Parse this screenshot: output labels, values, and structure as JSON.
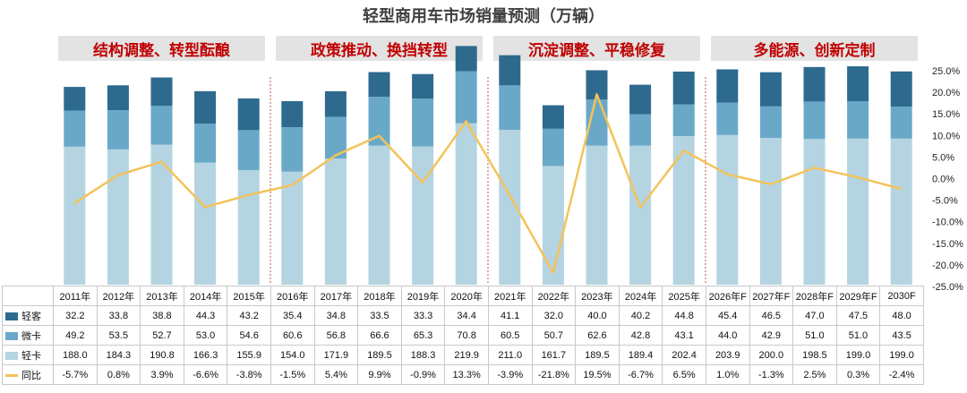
{
  "chart_data": {
    "type": "bar",
    "title": "轻型商用车市场销量预测（万辆）",
    "categories": [
      "2011年",
      "2012年",
      "2013年",
      "2014年",
      "2015年",
      "2016年",
      "2017年",
      "2018年",
      "2019年",
      "2020年",
      "2021年",
      "2022年",
      "2023年",
      "2024年",
      "2025年",
      "2026年F",
      "2027年F",
      "2028年F",
      "2029年F",
      "2030F"
    ],
    "stacked": true,
    "series": [
      {
        "name": "轻卡",
        "color": "#b4d4e2",
        "values": [
          188.0,
          184.3,
          190.8,
          166.3,
          155.9,
          154.0,
          171.9,
          189.5,
          188.3,
          219.9,
          211.0,
          161.7,
          189.5,
          189.4,
          202.4,
          203.9,
          200.0,
          198.5,
          199.0,
          199.0
        ]
      },
      {
        "name": "微卡",
        "color": "#6aa8c8",
        "values": [
          49.2,
          53.5,
          52.7,
          53.0,
          54.6,
          60.6,
          56.8,
          66.6,
          65.3,
          70.8,
          60.5,
          50.7,
          62.6,
          42.8,
          43.1,
          44.0,
          42.9,
          51.0,
          51.0,
          43.5
        ]
      },
      {
        "name": "轻客",
        "color": "#2e6a8e",
        "values": [
          32.2,
          33.8,
          38.8,
          44.3,
          43.2,
          35.4,
          34.8,
          33.5,
          33.3,
          34.4,
          41.1,
          32.0,
          40.0,
          40.2,
          44.8,
          45.4,
          46.5,
          47.0,
          47.5,
          48.0
        ]
      }
    ],
    "line_series": {
      "name": "同比",
      "color": "#f2c35a",
      "values": [
        -5.7,
        0.8,
        3.9,
        -6.6,
        -3.8,
        -1.5,
        5.4,
        9.9,
        -0.9,
        13.3,
        -3.9,
        -21.8,
        19.5,
        -6.7,
        6.5,
        1.0,
        -1.3,
        2.5,
        0.3,
        -2.4
      ],
      "labels": [
        "-5.7%",
        "0.8%",
        "3.9%",
        "-6.6%",
        "-3.8%",
        "-1.5%",
        "5.4%",
        "9.9%",
        "-0.9%",
        "13.3%",
        "-3.9%",
        "-21.8%",
        "19.5%",
        "-6.7%",
        "6.5%",
        "1.0%",
        "-1.3%",
        "2.5%",
        "0.3%",
        "-2.4%"
      ]
    },
    "y2_ticks": [
      "25.0%",
      "20.0%",
      "15.0%",
      "10.0%",
      "5.0%",
      "0.0%",
      "-5.0%",
      "-10.0%",
      "-15.0%",
      "-20.0%",
      "-25.0%"
    ],
    "y2lim": [
      -25,
      25
    ],
    "phases": [
      {
        "label": "结构调整、转型酝酿",
        "from": 0,
        "to": 4
      },
      {
        "label": "政策推动、换挡转型",
        "from": 5,
        "to": 9
      },
      {
        "label": "沉淀调整、平稳修复",
        "from": 10,
        "to": 14
      },
      {
        "label": "多能源、创新定制",
        "from": 15,
        "to": 19
      }
    ]
  },
  "table": {
    "rows": [
      {
        "name": "轻客",
        "key": 2
      },
      {
        "name": "微卡",
        "key": 1
      },
      {
        "name": "轻卡",
        "key": 0
      }
    ],
    "line_row": "同比"
  }
}
